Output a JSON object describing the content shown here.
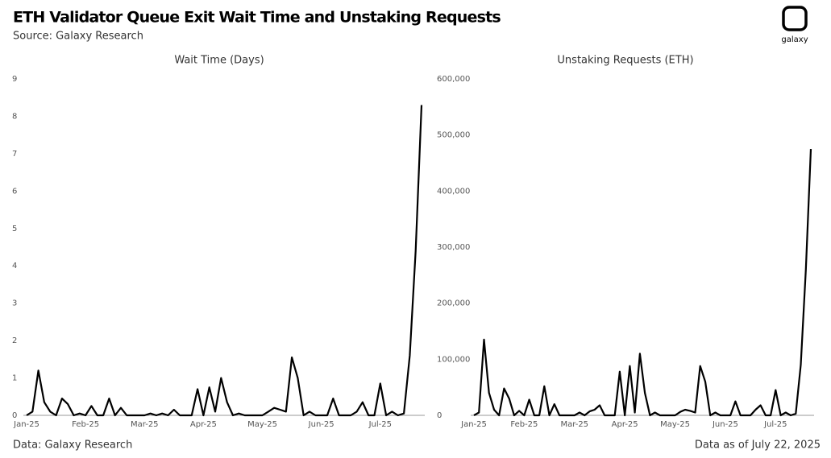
{
  "header": {
    "title": "ETH Validator Queue Exit Wait Time and Unstaking Requests",
    "source": "Source: Galaxy Research",
    "logo": "galaxy"
  },
  "footer": {
    "left": "Data: Galaxy Research",
    "right": "Data as of July 22, 2025"
  },
  "chart_data": [
    {
      "type": "line",
      "title": "Wait Time (Days)",
      "color": "#000000",
      "categories": [
        "Jan-25",
        null,
        null,
        null,
        null,
        null,
        null,
        null,
        null,
        null,
        "Feb-25",
        null,
        null,
        null,
        null,
        null,
        null,
        null,
        null,
        null,
        "Mar-25",
        null,
        null,
        null,
        null,
        null,
        null,
        null,
        null,
        null,
        "Apr-25",
        null,
        null,
        null,
        null,
        null,
        null,
        null,
        null,
        null,
        "May-25",
        null,
        null,
        null,
        null,
        null,
        null,
        null,
        null,
        null,
        "Jun-25",
        null,
        null,
        null,
        null,
        null,
        null,
        null,
        null,
        null,
        "Jul-25",
        null,
        null,
        null,
        null,
        null,
        null,
        null
      ],
      "values": [
        0,
        0.1,
        1.2,
        0.35,
        0.1,
        0,
        0.45,
        0.3,
        0,
        0.05,
        0,
        0.25,
        0,
        0,
        0.45,
        0,
        0.2,
        0,
        0,
        0,
        0,
        0.05,
        0,
        0.05,
        0,
        0.15,
        0,
        0,
        0,
        0.7,
        0,
        0.75,
        0.1,
        1.0,
        0.35,
        0,
        0.05,
        0,
        0,
        0,
        0,
        0.1,
        0.2,
        0.15,
        0.1,
        1.55,
        1.0,
        0,
        0.1,
        0,
        0,
        0,
        0.45,
        0,
        0,
        0,
        0.1,
        0.35,
        0,
        0,
        0.85,
        0,
        0.1,
        0,
        0.05,
        1.6,
        4.4,
        8.3
      ],
      "ylim": [
        0,
        9
      ],
      "yticks": [
        0,
        1,
        2,
        3,
        4,
        5,
        6,
        7,
        8,
        9
      ]
    },
    {
      "type": "line",
      "title": "Unstaking Requests (ETH)",
      "color": "#000000",
      "categories": [
        "Jan-25",
        null,
        null,
        null,
        null,
        null,
        null,
        null,
        null,
        null,
        "Feb-25",
        null,
        null,
        null,
        null,
        null,
        null,
        null,
        null,
        null,
        "Mar-25",
        null,
        null,
        null,
        null,
        null,
        null,
        null,
        null,
        null,
        "Apr-25",
        null,
        null,
        null,
        null,
        null,
        null,
        null,
        null,
        null,
        "May-25",
        null,
        null,
        null,
        null,
        null,
        null,
        null,
        null,
        null,
        "Jun-25",
        null,
        null,
        null,
        null,
        null,
        null,
        null,
        null,
        null,
        "Jul-25",
        null,
        null,
        null,
        null,
        null,
        null,
        null
      ],
      "values": [
        0,
        5000,
        135000,
        40000,
        10000,
        0,
        48000,
        30000,
        0,
        8000,
        0,
        28000,
        0,
        0,
        52000,
        0,
        20000,
        0,
        0,
        0,
        0,
        5000,
        0,
        7000,
        10000,
        18000,
        0,
        0,
        0,
        78000,
        0,
        88000,
        5000,
        110000,
        40000,
        0,
        5000,
        0,
        0,
        0,
        0,
        6000,
        10000,
        8000,
        5000,
        88000,
        60000,
        0,
        5000,
        0,
        0,
        0,
        25000,
        0,
        0,
        0,
        10000,
        18000,
        0,
        0,
        45000,
        0,
        5000,
        0,
        3000,
        90000,
        260000,
        475000
      ],
      "ylim": [
        0,
        600000
      ],
      "yticks": [
        0,
        {
          "value": 100000,
          "label": "100,000"
        },
        {
          "value": 200000,
          "label": "200,000"
        },
        {
          "value": 300000,
          "label": "300,000"
        },
        {
          "value": 400000,
          "label": "400,000"
        },
        {
          "value": 500000,
          "label": "500,000"
        },
        {
          "value": 600000,
          "label": "600,000"
        }
      ]
    }
  ]
}
